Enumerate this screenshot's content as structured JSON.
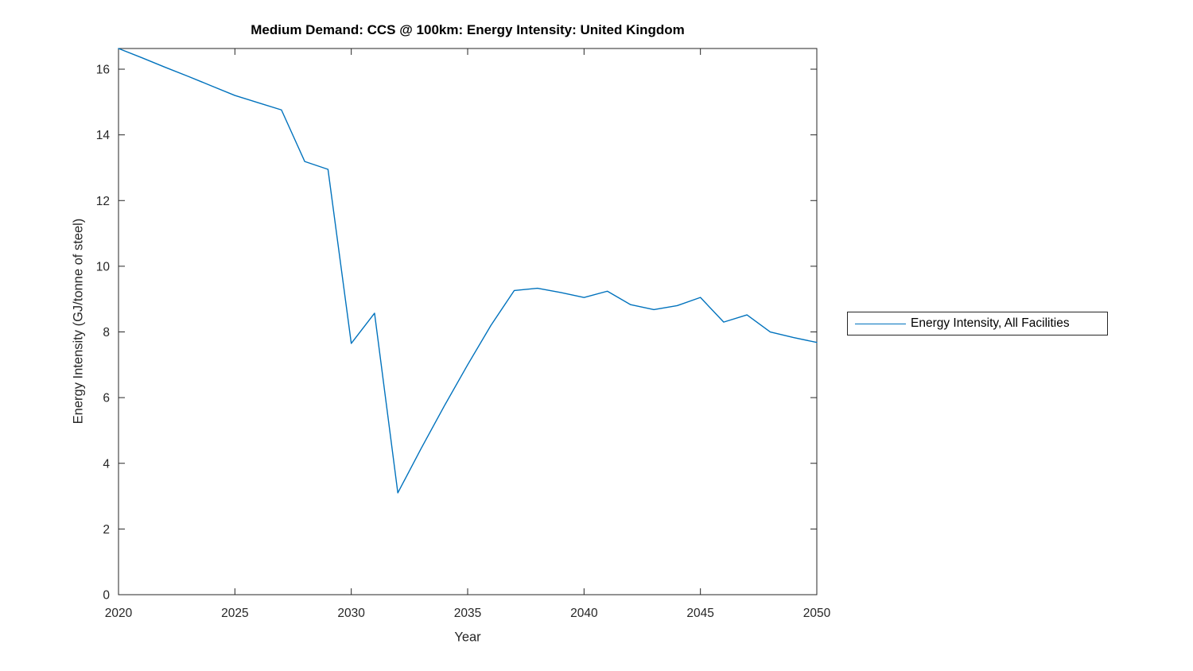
{
  "figure": {
    "background": "#ffffff"
  },
  "chart_data": {
    "type": "line",
    "title": "Medium Demand: CCS @ 100km: Energy Intensity: United Kingdom",
    "xlabel": "Year",
    "ylabel": "Energy Intensity (GJ/tonne of steel)",
    "xlim": [
      2020,
      2050
    ],
    "ylim": [
      0,
      16.63
    ],
    "xticks": [
      2020,
      2025,
      2030,
      2035,
      2040,
      2045,
      2050
    ],
    "yticks": [
      0,
      2,
      4,
      6,
      8,
      10,
      12,
      14,
      16
    ],
    "grid": false,
    "axis_color": "#262626",
    "tick_label_color": "#262626",
    "legend": {
      "position": "right-outside",
      "entries": [
        "Energy Intensity, All Facilities"
      ]
    },
    "x": [
      2020,
      2021,
      2022,
      2023,
      2024,
      2025,
      2026,
      2027,
      2028,
      2029,
      2030,
      2031,
      2032,
      2033,
      2034,
      2035,
      2036,
      2037,
      2038,
      2039,
      2040,
      2041,
      2042,
      2043,
      2044,
      2045,
      2046,
      2047,
      2048,
      2049,
      2050
    ],
    "series": [
      {
        "name": "Energy Intensity, All Facilities",
        "color": "#0072BD",
        "values": [
          16.63,
          16.35,
          16.06,
          15.78,
          15.49,
          15.2,
          14.98,
          14.76,
          13.19,
          12.95,
          7.65,
          8.57,
          3.1,
          4.45,
          5.75,
          7.0,
          8.2,
          9.26,
          9.33,
          9.2,
          9.05,
          9.24,
          8.83,
          8.68,
          8.8,
          9.05,
          8.3,
          8.52,
          8.0,
          7.83,
          7.68
        ]
      }
    ]
  }
}
